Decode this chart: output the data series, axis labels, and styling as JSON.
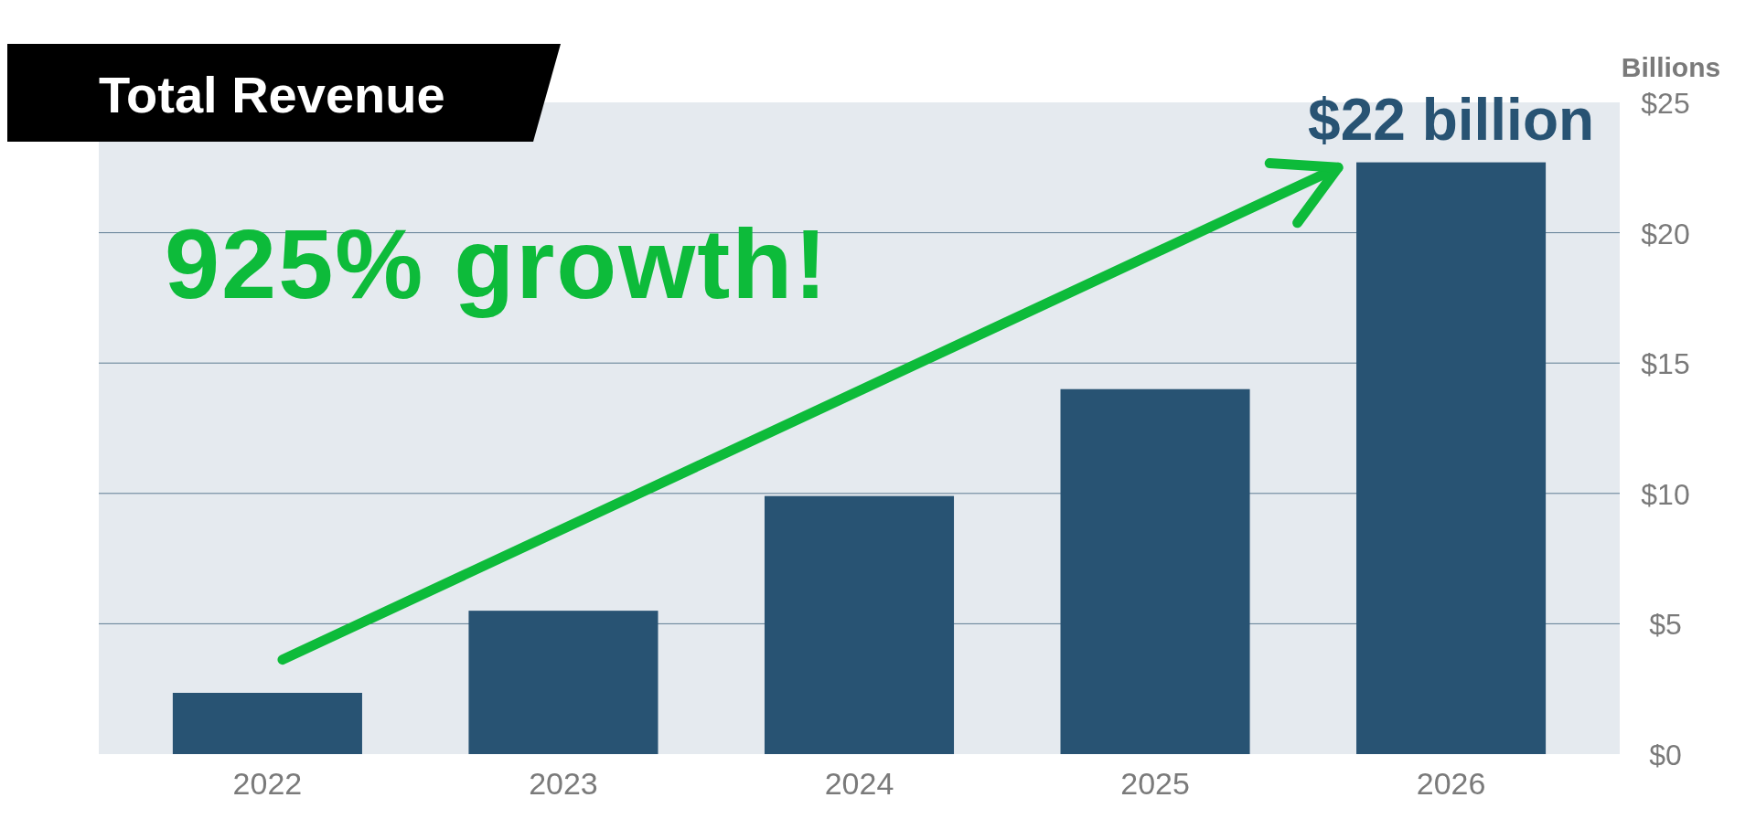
{
  "chart_data": {
    "type": "bar",
    "title": "Total Revenue",
    "ylabel": "Billions",
    "categories": [
      "2022",
      "2023",
      "2024",
      "2025",
      "2026"
    ],
    "values": [
      2.35,
      5.5,
      9.9,
      14,
      22.7
    ],
    "color": "#285373",
    "ylim": [
      0,
      25
    ],
    "yticks": [
      {
        "value": 0,
        "label": "$0"
      },
      {
        "value": 5,
        "label": "$5"
      },
      {
        "value": 10,
        "label": "$10"
      },
      {
        "value": 15,
        "label": "$15"
      },
      {
        "value": 20,
        "label": "$20"
      },
      {
        "value": 25,
        "label": "$25"
      }
    ],
    "grid": "y",
    "annotations": [
      "925% growth!",
      {
        "text": "$22 billion",
        "x": "2026",
        "y": 22.7
      }
    ]
  }
}
